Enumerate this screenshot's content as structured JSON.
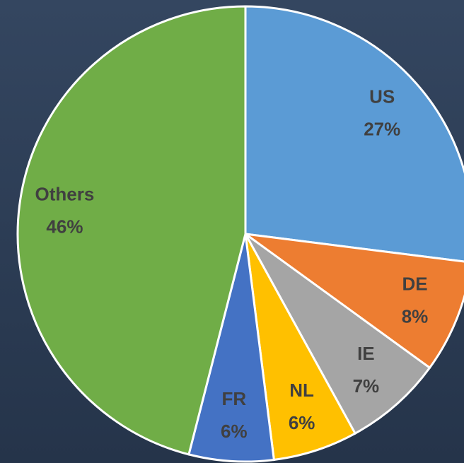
{
  "chart_data": {
    "type": "pie",
    "categories": [
      "US",
      "DE",
      "IE",
      "NL",
      "FR",
      "Others"
    ],
    "values": [
      27,
      8,
      7,
      6,
      6,
      46
    ],
    "value_labels": [
      "27%",
      "8%",
      "7%",
      "6%",
      "6%",
      "46%"
    ],
    "colors": [
      "#5b9bd5",
      "#ed7d31",
      "#a5a5a5",
      "#ffc000",
      "#4472c4",
      "#70ad47"
    ]
  }
}
